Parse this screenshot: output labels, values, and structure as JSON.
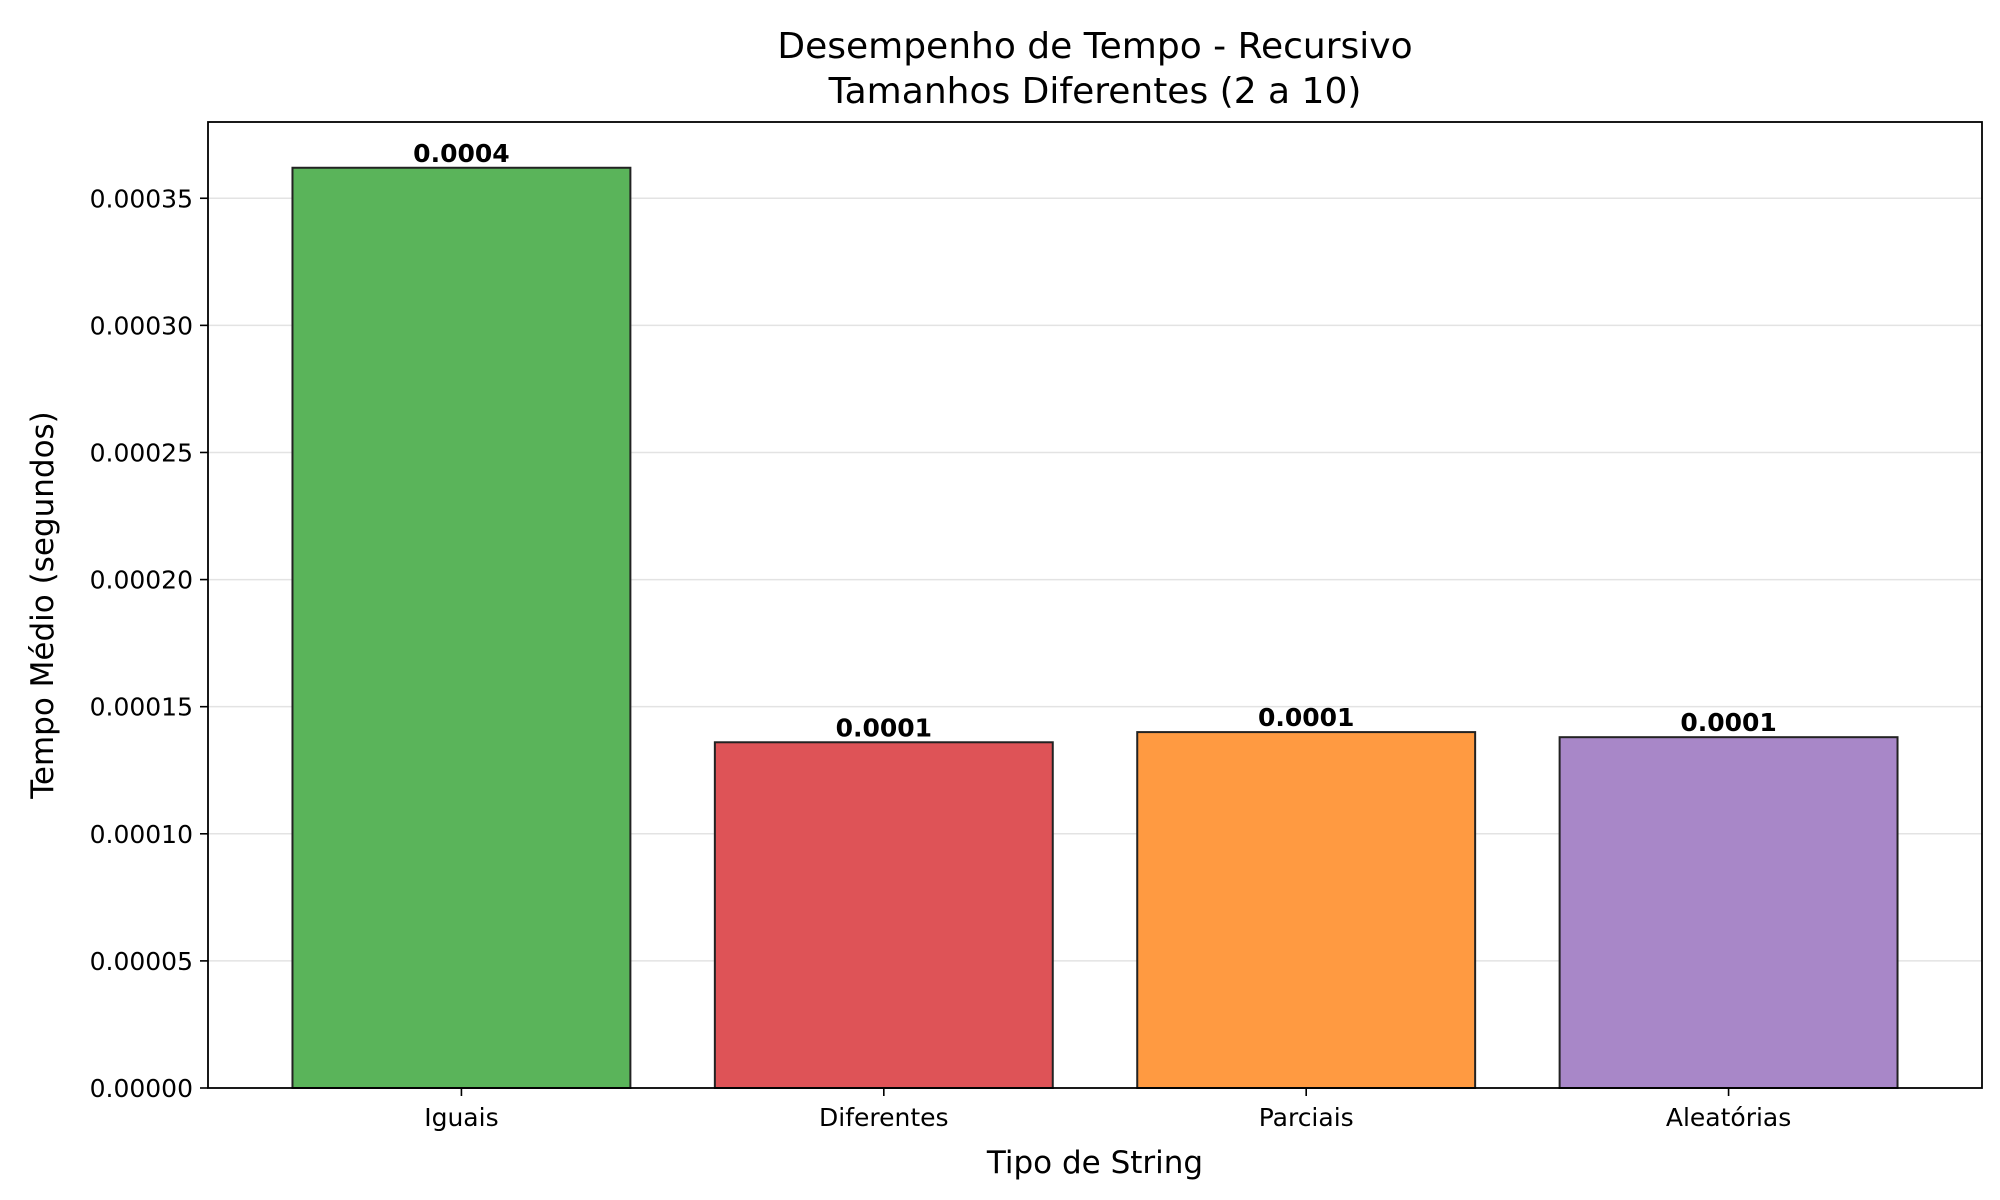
{
  "chart_data": {
    "type": "bar",
    "title": "Desempenho de Tempo - Recursivo",
    "subtitle": "Tamanhos Diferentes (2 a 10)",
    "xlabel": "Tipo de String",
    "ylabel": "Tempo Médio (segundos)",
    "categories": [
      "Iguais",
      "Diferentes",
      "Parciais",
      "Aleatórias"
    ],
    "values": [
      0.000362,
      0.000136,
      0.00014,
      0.000138
    ],
    "data_labels": [
      "0.0004",
      "0.0001",
      "0.0001",
      "0.0001"
    ],
    "colors": [
      "#5ab45a",
      "#de5357",
      "#ff9a41",
      "#a887c8"
    ],
    "ylim": [
      0,
      0.00038
    ],
    "yticks": [
      0,
      5e-05,
      0.0001,
      0.00015,
      0.0002,
      0.00025,
      0.0003,
      0.00035
    ],
    "ytick_labels": [
      "0.00000",
      "0.00005",
      "0.00010",
      "0.00015",
      "0.00020",
      "0.00025",
      "0.00030",
      "0.00035"
    ],
    "grid": "y",
    "legend": "none"
  }
}
